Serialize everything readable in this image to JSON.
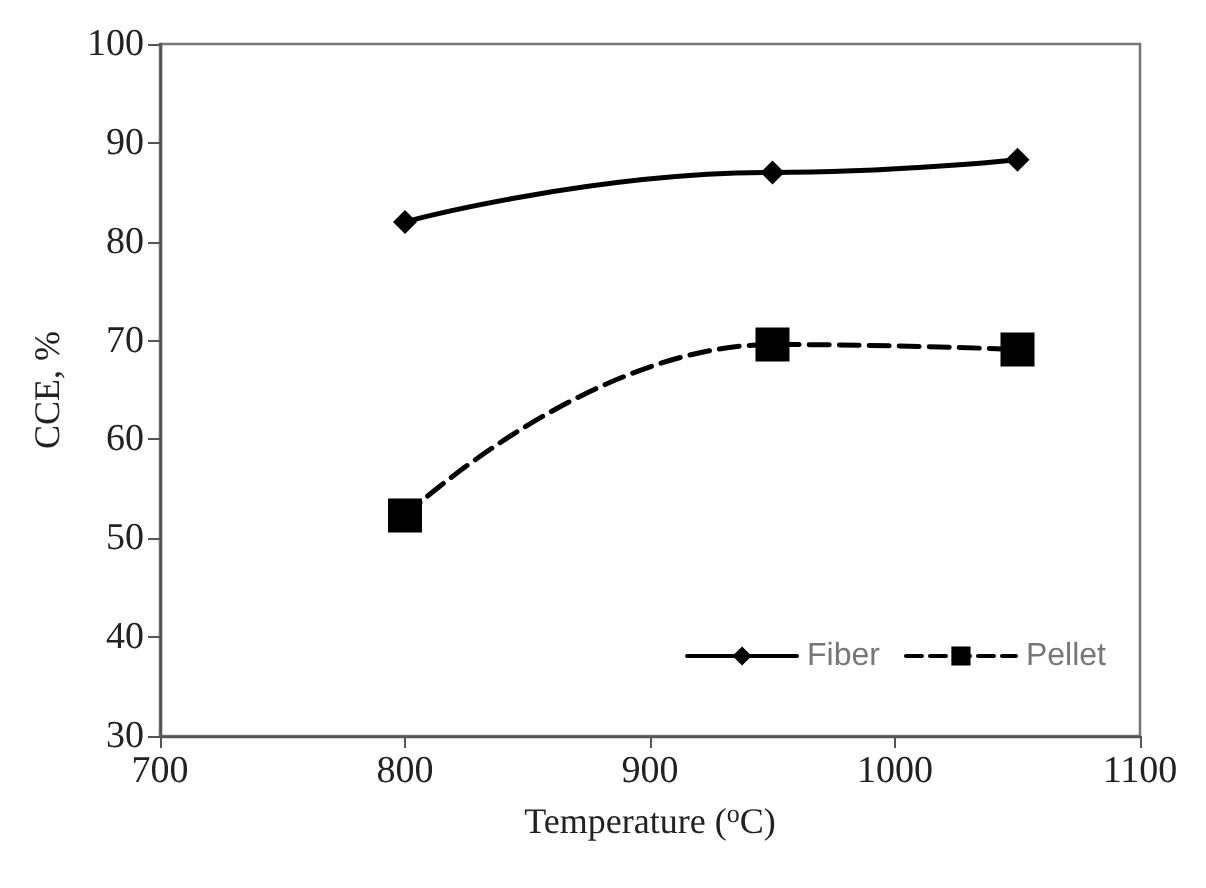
{
  "chart_data": {
    "type": "line",
    "xlabel": "Temperature ($^{o}$C)",
    "ylabel": "CCE, %",
    "xlim": [
      700,
      1100
    ],
    "xticks": [
      700,
      800,
      900,
      1000,
      1100
    ],
    "ylim": [
      30,
      100
    ],
    "yticks": [
      30,
      40,
      50,
      60,
      70,
      80,
      90,
      100
    ],
    "grid": false,
    "legend": "bottom right",
    "series": [
      {
        "name": "Fiber",
        "color": "#000000",
        "x": [
          800,
          950,
          1050
        ],
        "values": [
          82,
          87,
          88.3
        ],
        "marker": "diamond",
        "line_style": "solid"
      },
      {
        "name": "Pellet",
        "color": "#000000",
        "x": [
          800,
          950,
          1050
        ],
        "values": [
          52.3,
          69.6,
          69.1
        ],
        "marker": "square",
        "line_style": "dashed"
      }
    ]
  }
}
